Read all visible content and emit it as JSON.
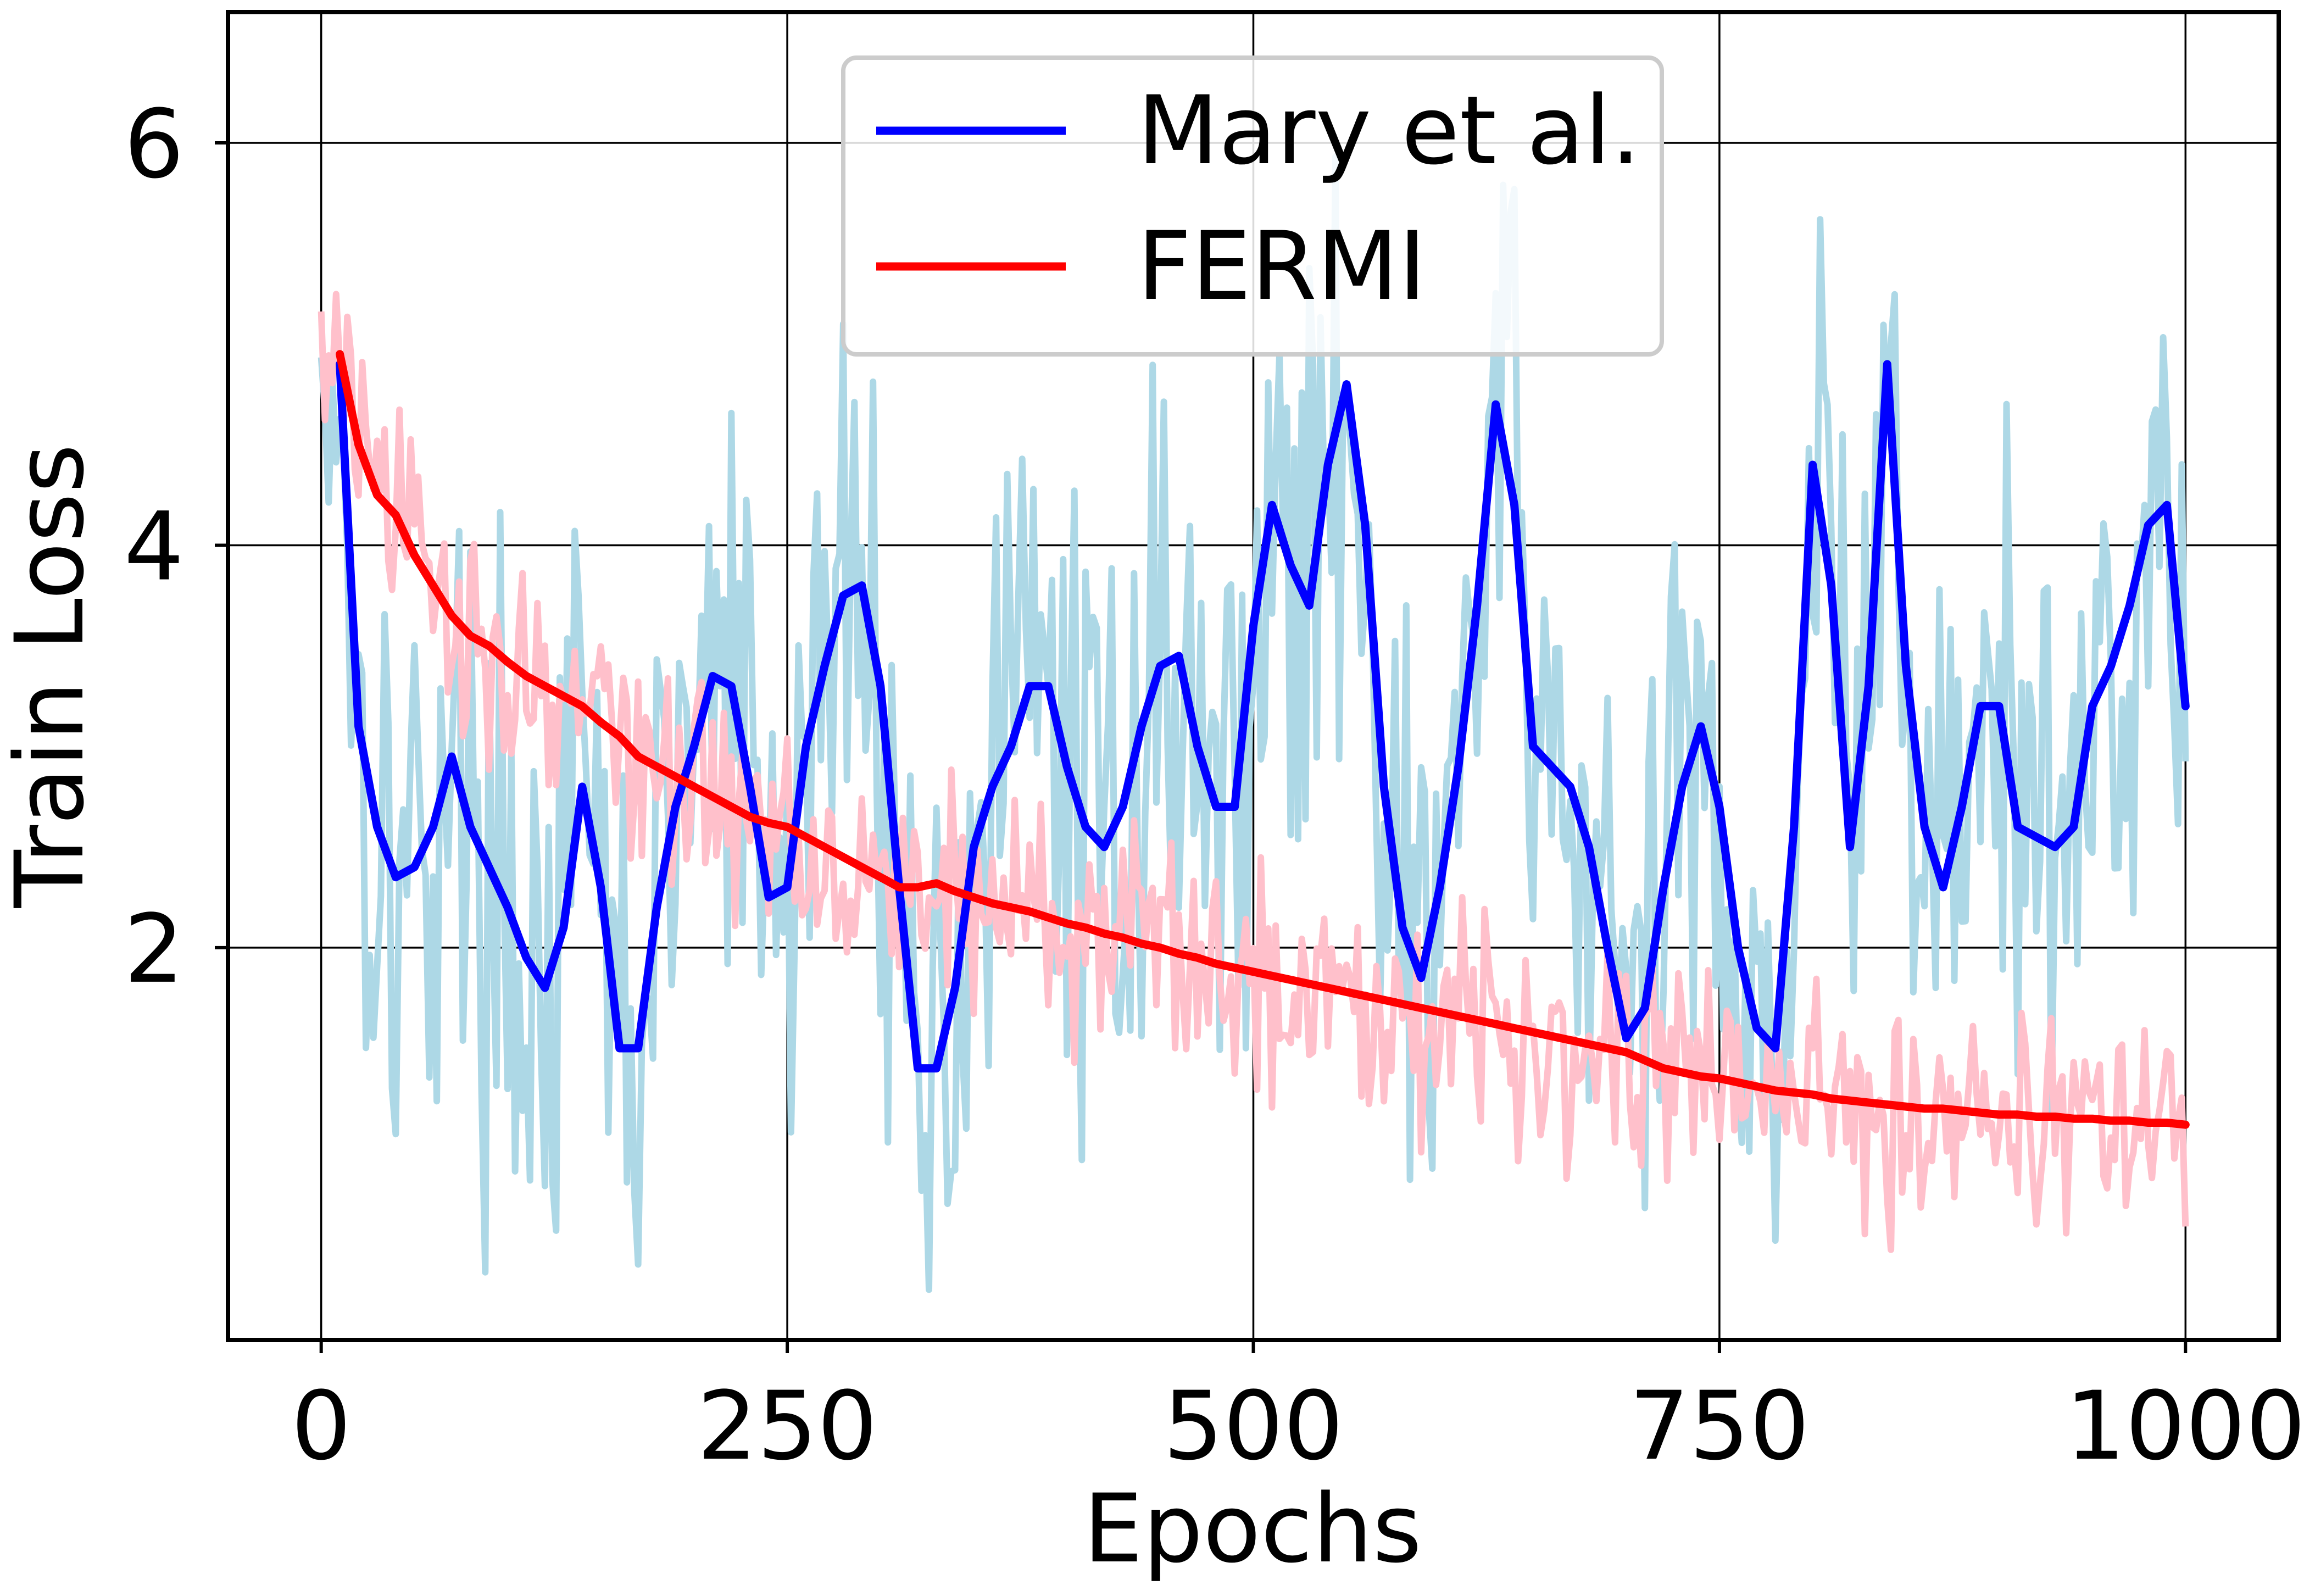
{
  "chart_data": {
    "type": "line",
    "title": "",
    "xlabel": "Epochs",
    "ylabel": "Train Loss",
    "xlim": [
      -50,
      1050
    ],
    "ylim": [
      0.05,
      6.65
    ],
    "xticks": [
      0,
      250,
      500,
      750,
      1000
    ],
    "xtick_labels": [
      "0",
      "250",
      "500",
      "750",
      "1000"
    ],
    "yticks": [
      2,
      4,
      6
    ],
    "ytick_labels": [
      "2",
      "4",
      "6"
    ],
    "grid": true,
    "legend_position": "top-center",
    "series": [
      {
        "name": "Mary et al.",
        "color": "#0000ff",
        "raw_color": "#add8e6",
        "x": [
          10,
          20,
          30,
          40,
          50,
          60,
          70,
          80,
          90,
          100,
          110,
          120,
          130,
          140,
          150,
          160,
          170,
          180,
          190,
          200,
          210,
          220,
          230,
          240,
          250,
          260,
          270,
          280,
          290,
          300,
          310,
          320,
          330,
          340,
          350,
          360,
          370,
          380,
          390,
          400,
          410,
          420,
          430,
          440,
          450,
          460,
          470,
          480,
          490,
          500,
          510,
          520,
          530,
          540,
          550,
          560,
          570,
          580,
          590,
          600,
          610,
          620,
          630,
          640,
          650,
          660,
          670,
          680,
          690,
          700,
          710,
          720,
          730,
          740,
          750,
          760,
          770,
          780,
          790,
          800,
          810,
          820,
          830,
          840,
          850,
          860,
          870,
          880,
          890,
          900,
          910,
          920,
          930,
          940,
          950,
          960,
          970,
          980,
          990,
          1000
        ],
        "values": [
          4.9,
          3.1,
          2.6,
          2.35,
          2.4,
          2.6,
          2.95,
          2.6,
          2.4,
          2.2,
          1.95,
          1.8,
          2.1,
          2.8,
          2.3,
          1.5,
          1.5,
          2.2,
          2.7,
          3.0,
          3.35,
          3.3,
          2.8,
          2.25,
          2.3,
          3.0,
          3.4,
          3.75,
          3.8,
          3.3,
          2.3,
          1.4,
          1.4,
          1.8,
          2.5,
          2.8,
          3.0,
          3.3,
          3.3,
          2.9,
          2.6,
          2.5,
          2.7,
          3.1,
          3.4,
          3.45,
          3.0,
          2.7,
          2.7,
          3.6,
          4.2,
          3.9,
          3.7,
          4.4,
          4.8,
          4.1,
          2.8,
          2.1,
          1.85,
          2.3,
          2.9,
          3.7,
          4.7,
          4.2,
          3.0,
          2.9,
          2.8,
          2.5,
          2.0,
          1.55,
          1.7,
          2.3,
          2.8,
          3.1,
          2.7,
          2.0,
          1.6,
          1.5,
          2.6,
          4.4,
          3.8,
          2.5,
          3.3,
          4.9,
          3.4,
          2.6,
          2.3,
          2.7,
          3.2,
          3.2,
          2.6,
          2.55,
          2.5,
          2.6,
          3.2,
          3.4,
          3.7,
          4.1,
          4.2,
          3.2
        ]
      },
      {
        "name": "FERMI",
        "color": "#ff0000",
        "raw_color": "#ffc0cb",
        "x": [
          10,
          20,
          30,
          40,
          50,
          60,
          70,
          80,
          90,
          100,
          110,
          120,
          130,
          140,
          150,
          160,
          170,
          180,
          190,
          200,
          210,
          220,
          230,
          240,
          250,
          260,
          270,
          280,
          290,
          300,
          310,
          320,
          330,
          340,
          350,
          360,
          370,
          380,
          390,
          400,
          410,
          420,
          430,
          440,
          450,
          460,
          470,
          480,
          490,
          500,
          510,
          520,
          530,
          540,
          550,
          560,
          570,
          580,
          590,
          600,
          610,
          620,
          630,
          640,
          650,
          660,
          670,
          680,
          690,
          700,
          710,
          720,
          730,
          740,
          750,
          760,
          770,
          780,
          790,
          800,
          810,
          820,
          830,
          840,
          850,
          860,
          870,
          880,
          890,
          900,
          910,
          920,
          930,
          940,
          950,
          960,
          970,
          980,
          990,
          1000
        ],
        "values": [
          4.95,
          4.5,
          4.25,
          4.15,
          3.95,
          3.8,
          3.65,
          3.55,
          3.5,
          3.42,
          3.35,
          3.3,
          3.25,
          3.2,
          3.12,
          3.05,
          2.95,
          2.9,
          2.85,
          2.8,
          2.75,
          2.7,
          2.65,
          2.62,
          2.6,
          2.55,
          2.5,
          2.45,
          2.4,
          2.35,
          2.3,
          2.3,
          2.32,
          2.28,
          2.25,
          2.22,
          2.2,
          2.18,
          2.15,
          2.12,
          2.1,
          2.07,
          2.05,
          2.02,
          2.0,
          1.97,
          1.95,
          1.92,
          1.9,
          1.88,
          1.86,
          1.84,
          1.82,
          1.8,
          1.78,
          1.76,
          1.74,
          1.72,
          1.7,
          1.68,
          1.66,
          1.64,
          1.62,
          1.6,
          1.58,
          1.56,
          1.54,
          1.52,
          1.5,
          1.48,
          1.44,
          1.4,
          1.38,
          1.36,
          1.35,
          1.33,
          1.31,
          1.29,
          1.28,
          1.27,
          1.25,
          1.24,
          1.23,
          1.22,
          1.21,
          1.2,
          1.2,
          1.19,
          1.18,
          1.17,
          1.17,
          1.16,
          1.16,
          1.15,
          1.15,
          1.14,
          1.14,
          1.13,
          1.13,
          1.12
        ]
      }
    ]
  }
}
